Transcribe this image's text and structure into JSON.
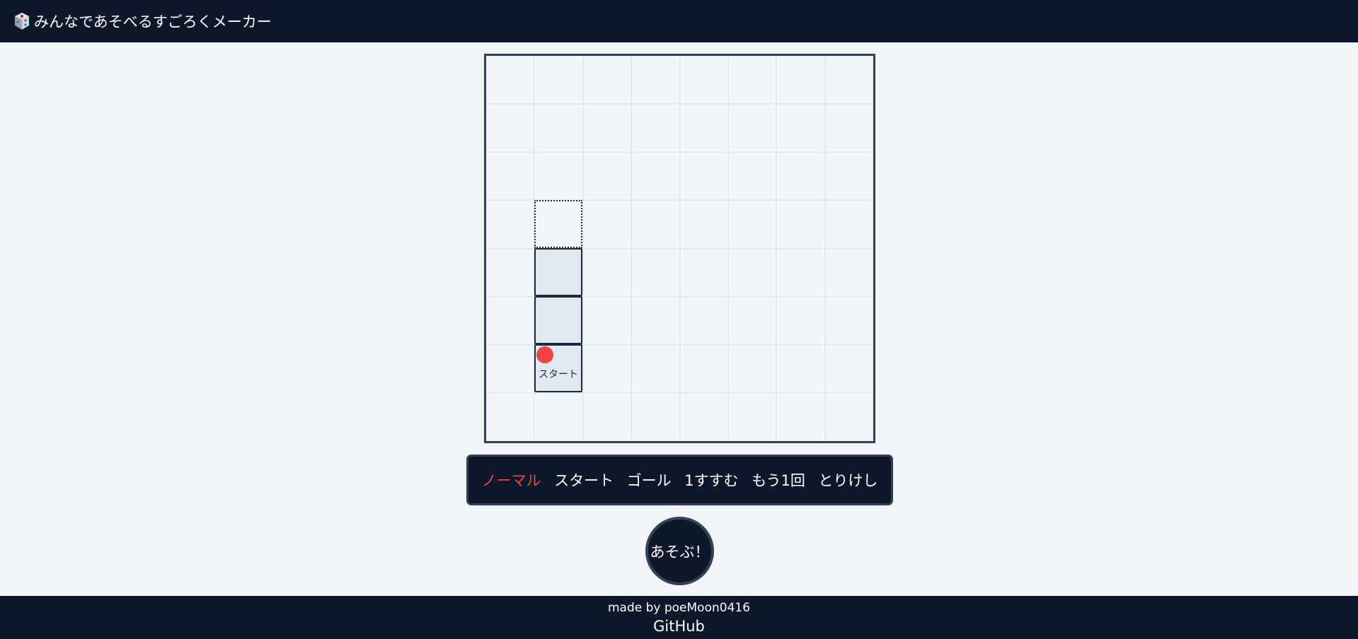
{
  "header": {
    "logo_icon": "dice-icon",
    "title": "みんなであそべるすごろくメーカー"
  },
  "board": {
    "columns": 8,
    "rows": 8,
    "start_label": "スタート",
    "piece_color": "#ef4444"
  },
  "toolbar": {
    "tools": [
      "ノーマル",
      "スタート",
      "ゴール",
      "1すすむ",
      "もう1回",
      "とりけし"
    ],
    "active_tool": "ノーマル"
  },
  "play_button": {
    "label": "あそぶ！"
  },
  "footer": {
    "credit": "made by poeMoon0416",
    "link_label": "GitHub"
  },
  "colors": {
    "background": "#f1f5f9",
    "dark": "#0f172a",
    "border": "#334155",
    "accent": "#ef4444"
  }
}
